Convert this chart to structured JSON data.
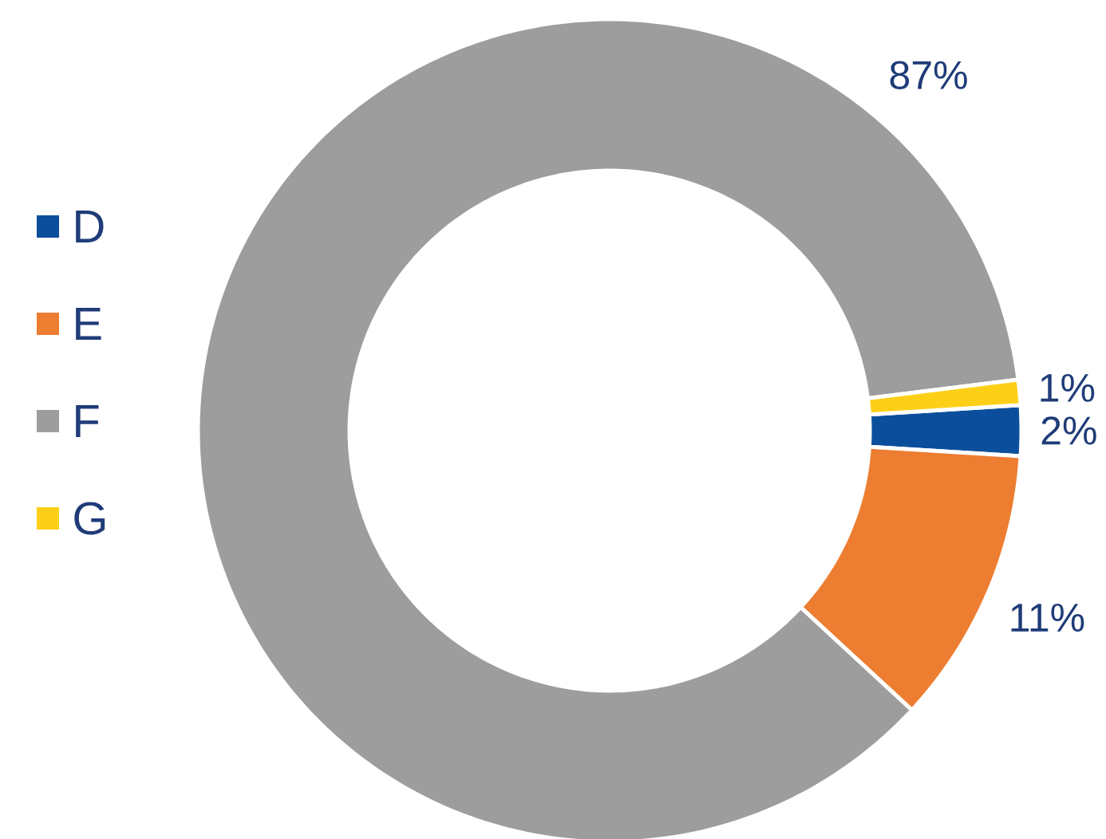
{
  "chart_data": {
    "type": "donut",
    "categories": [
      "D",
      "E",
      "F",
      "G"
    ],
    "values": [
      2,
      11,
      87,
      1
    ],
    "value_labels": [
      "2%",
      "11%",
      "87%",
      "1%"
    ],
    "colors": [
      "#0b4f9c",
      "#ed7d31",
      "#9d9d9d",
      "#fdd017"
    ],
    "legend": "left"
  }
}
